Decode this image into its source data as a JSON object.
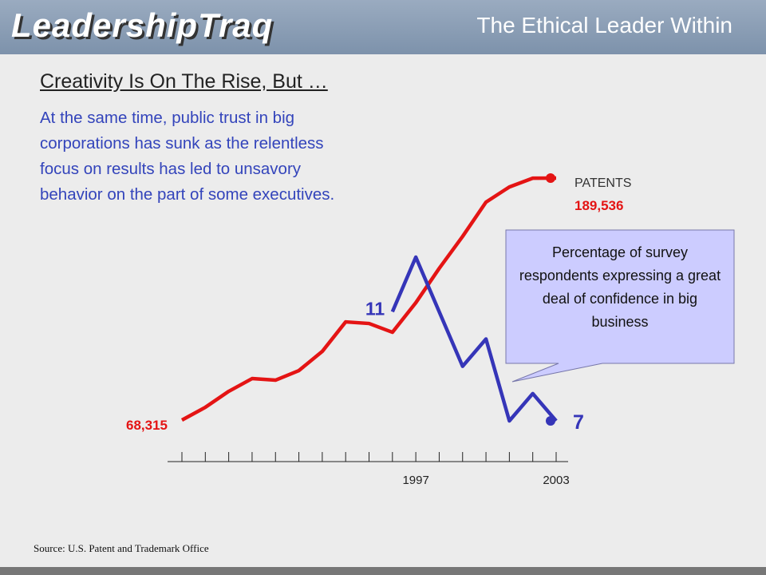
{
  "header": {
    "logo": "LeadershipTraq",
    "title": "The Ethical Leader Within"
  },
  "slide": {
    "heading": "Creativity Is On The Rise, But …",
    "body": "At the same time, public trust in big corporations has sunk as the relentless focus on results has led to unsavory behavior on the part of some executives.",
    "source": "Source: U.S. Patent and Trademark Office"
  },
  "chart_data": {
    "type": "line",
    "xlim": [
      1987,
      2003
    ],
    "xticks": [
      {
        "value": 1987,
        "label": null
      },
      {
        "value": 1988,
        "label": null
      },
      {
        "value": 1989,
        "label": null
      },
      {
        "value": 1990,
        "label": null
      },
      {
        "value": 1991,
        "label": null
      },
      {
        "value": 1992,
        "label": null
      },
      {
        "value": 1993,
        "label": null
      },
      {
        "value": 1994,
        "label": null
      },
      {
        "value": 1995,
        "label": null
      },
      {
        "value": 1996,
        "label": null
      },
      1997,
      {
        "value": 1998,
        "label": null
      },
      {
        "value": 1999,
        "label": null
      },
      {
        "value": 2000,
        "label": null
      },
      {
        "value": 2001,
        "label": null
      },
      {
        "value": 2002,
        "label": null
      },
      2003
    ],
    "series": [
      {
        "name": "PATENTS",
        "color": "#e41414",
        "x": [
          1987,
          1988,
          1989,
          1990,
          1991,
          1992,
          1993,
          1994,
          1995,
          1996,
          1997,
          1998,
          1999,
          2000,
          2001,
          2002,
          2003
        ],
        "values": [
          68315,
          74700,
          82700,
          89100,
          88300,
          93100,
          102700,
          117500,
          116700,
          112300,
          127100,
          144300,
          160300,
          177500,
          185100,
          189500,
          189536
        ],
        "value_labels": [
          "68,315",
          null,
          null,
          null,
          null,
          null,
          null,
          null,
          null,
          null,
          null,
          null,
          null,
          null,
          null,
          null,
          "189,536"
        ]
      },
      {
        "name": "Percentage of survey respondents expressing a great deal of confidence in big business",
        "color": "#3535b8",
        "x": [
          1996,
          1997,
          1999,
          2000,
          2001,
          2002,
          2003
        ],
        "values": [
          11,
          13,
          9,
          10,
          7,
          8,
          7
        ]
      }
    ]
  }
}
